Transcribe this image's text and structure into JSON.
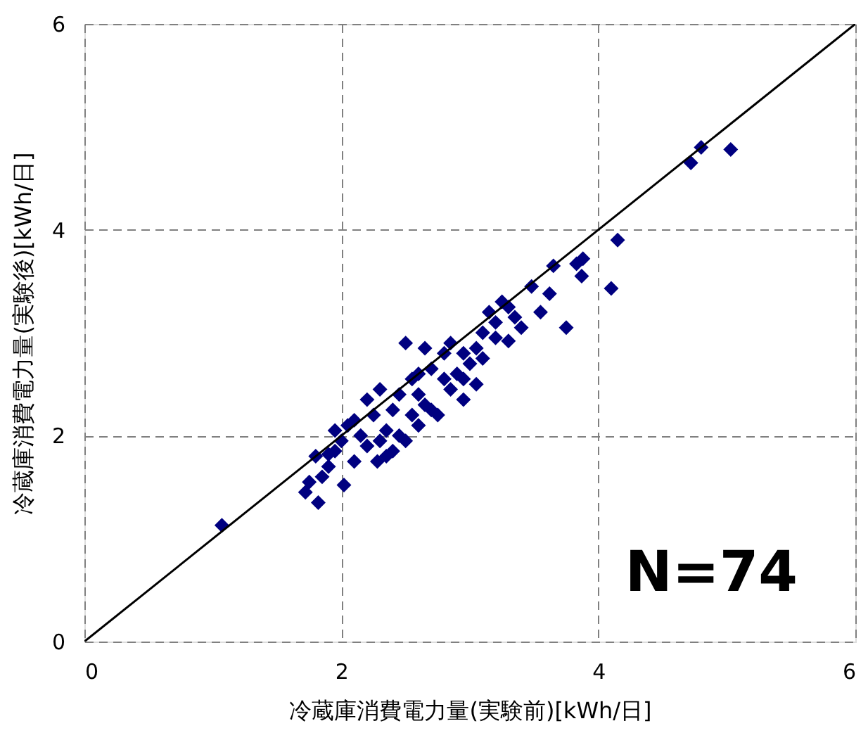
{
  "chart_data": {
    "type": "scatter",
    "xlabel": "冷蔵庫消費電力量(実験前)[kWh/日]",
    "ylabel": "冷蔵庫消費電力量(実験後)[kWh/日]",
    "xlim": [
      0,
      6
    ],
    "ylim": [
      0,
      6
    ],
    "xticks": [
      0,
      2,
      4,
      6
    ],
    "yticks": [
      0,
      2,
      4,
      6
    ],
    "grid": true,
    "annotations": [
      "N=74"
    ],
    "series": [
      {
        "marker": "diamond",
        "color": "#000080",
        "x": [
          1.07,
          4.8,
          4.72,
          5.03,
          4.15,
          4.1,
          3.88,
          3.87,
          3.83,
          3.65,
          3.75,
          3.62,
          3.55,
          3.48,
          3.4,
          3.3,
          3.25,
          3.35,
          3.3,
          3.2,
          3.1,
          3.05,
          3.0,
          2.95,
          2.9,
          2.85,
          3.05,
          2.95,
          2.8,
          2.75,
          2.7,
          2.65,
          2.6,
          2.55,
          2.5,
          2.45,
          2.4,
          2.35,
          2.3,
          2.25,
          2.2,
          2.15,
          2.1,
          2.05,
          2.0,
          1.95,
          1.9,
          1.85,
          1.8,
          1.75,
          1.72,
          1.82,
          2.02,
          2.2,
          2.4,
          2.5,
          2.6,
          2.7,
          2.85,
          3.1,
          3.15,
          2.35,
          2.45,
          2.3,
          2.55,
          2.65,
          1.95,
          2.1,
          2.28,
          2.95,
          3.2,
          2.8,
          2.6,
          1.9
        ],
        "values": [
          1.13,
          4.8,
          4.65,
          4.78,
          3.9,
          3.43,
          3.72,
          3.55,
          3.67,
          3.65,
          3.05,
          3.38,
          3.2,
          3.45,
          3.05,
          3.25,
          3.3,
          3.15,
          2.92,
          3.1,
          3.0,
          2.85,
          2.7,
          2.8,
          2.6,
          2.9,
          2.5,
          2.35,
          2.55,
          2.2,
          2.65,
          2.85,
          2.4,
          2.55,
          2.9,
          2.4,
          2.25,
          2.05,
          2.45,
          2.2,
          1.9,
          2.0,
          1.75,
          2.1,
          1.95,
          1.85,
          1.7,
          1.6,
          1.8,
          1.55,
          1.45,
          1.35,
          1.52,
          2.35,
          1.85,
          1.95,
          2.1,
          2.25,
          2.45,
          2.75,
          3.2,
          1.8,
          2.0,
          1.95,
          2.2,
          2.3,
          2.05,
          2.15,
          1.75,
          2.55,
          2.95,
          2.8,
          2.6,
          1.82
        ]
      },
      {
        "type": "line",
        "marker": "none",
        "line_style": "solid",
        "color": "#000000",
        "x": [
          0,
          6
        ],
        "values": [
          0,
          6
        ]
      }
    ]
  }
}
